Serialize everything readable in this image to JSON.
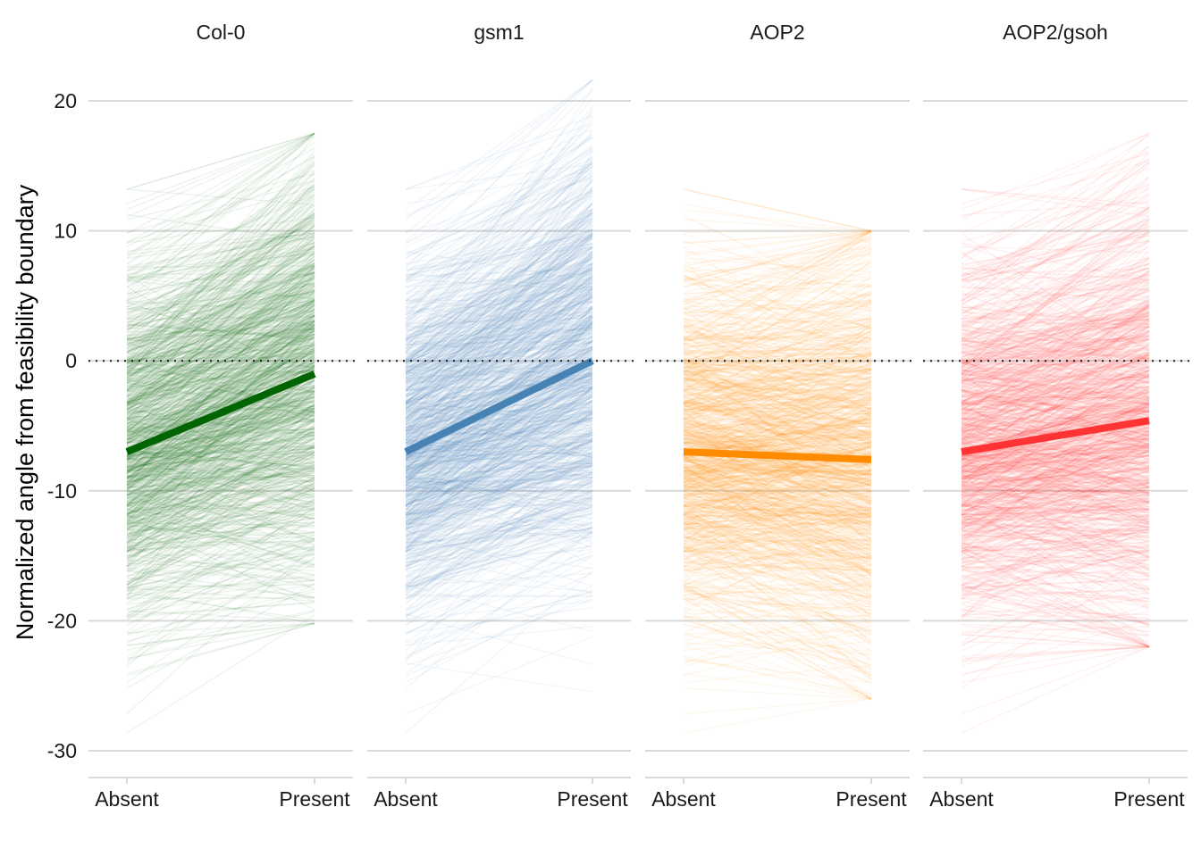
{
  "chart_data": {
    "type": "line",
    "ylabel": "Normalized angle from feasibility boundary",
    "xlabel": "",
    "x_categories": [
      "Absent",
      "Present"
    ],
    "ylim": [
      -32,
      22
    ],
    "yticks": [
      20,
      10,
      0,
      -10,
      -20,
      -30
    ],
    "reference_line": {
      "y": 0,
      "style": "dotted"
    },
    "grid": true,
    "legend": "none",
    "facets": [
      {
        "label": "Col-0",
        "color": "#006400",
        "mean": [
          -7.0,
          -1.0
        ],
        "lines": {
          "count": 1000,
          "absent_range": [
            -29.6,
            13.2
          ],
          "present_range": [
            -20.2,
            17.5
          ]
        }
      },
      {
        "label": "gsm1",
        "color": "#4682B4",
        "mean": [
          -7.0,
          0.0
        ],
        "lines": {
          "count": 1000,
          "absent_range": [
            -29.6,
            13.2
          ],
          "present_range": [
            -29.2,
            21.6
          ]
        }
      },
      {
        "label": "AOP2",
        "color": "#FF8C00",
        "mean": [
          -7.0,
          -7.6
        ],
        "lines": {
          "count": 1000,
          "absent_range": [
            -29.6,
            13.2
          ],
          "present_range": [
            -26.0,
            10.0
          ]
        }
      },
      {
        "label": "AOP2/gsoh",
        "color": "#FF3333",
        "mean": [
          -7.0,
          -4.6
        ],
        "lines": {
          "count": 1000,
          "absent_range": [
            -29.6,
            13.2
          ],
          "present_range": [
            -22.0,
            17.5
          ]
        }
      }
    ]
  }
}
